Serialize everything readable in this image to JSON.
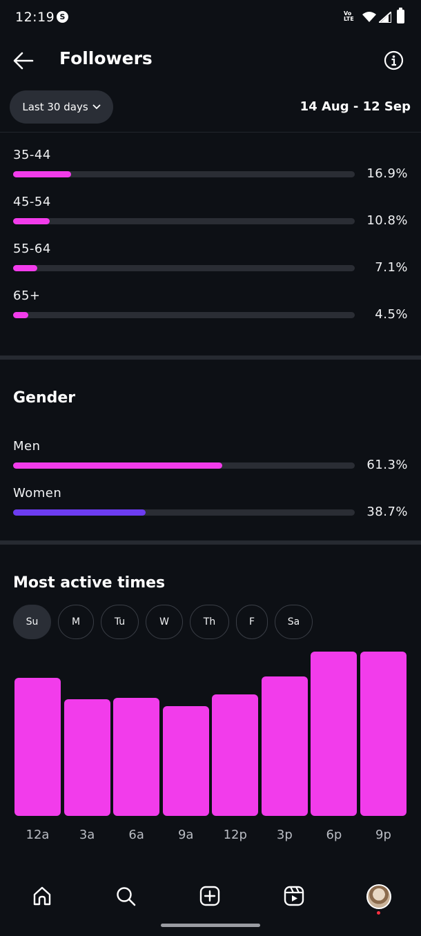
{
  "status_bar": {
    "time": "12:19",
    "badge": "S",
    "network": "Vo\nLTE"
  },
  "header": {
    "title": "Followers",
    "back_icon": "arrow-left-icon",
    "info_icon": "info-circle-icon"
  },
  "filter": {
    "range_label": "Last 30 days",
    "date_range": "14 Aug - 12 Sep"
  },
  "age_groups": [
    {
      "label": "35-44",
      "value": "16.9%",
      "fraction": 0.169
    },
    {
      "label": "45-54",
      "value": "10.8%",
      "fraction": 0.108
    },
    {
      "label": "55-64",
      "value": "7.1%",
      "fraction": 0.071
    },
    {
      "label": "65+",
      "value": "4.5%",
      "fraction": 0.045
    }
  ],
  "gender": {
    "title": "Gender",
    "items": [
      {
        "label": "Men",
        "value": "61.3%",
        "fraction": 0.613,
        "color": "#f23ceb"
      },
      {
        "label": "Women",
        "value": "38.7%",
        "fraction": 0.387,
        "color": "#6c3cf0"
      }
    ]
  },
  "active_times": {
    "title": "Most active times",
    "days": [
      "Su",
      "M",
      "Tu",
      "W",
      "Th",
      "F",
      "Sa"
    ],
    "selected_day": "Su"
  },
  "chart_data": {
    "type": "bar",
    "categories": [
      "12a",
      "3a",
      "6a",
      "9a",
      "12p",
      "3p",
      "6p",
      "9p"
    ],
    "values": [
      84,
      71,
      72,
      67,
      74,
      85,
      100,
      100
    ],
    "ylim": [
      0,
      100
    ],
    "color": "#f23ceb"
  },
  "bottom_nav": {
    "items": [
      "home-icon",
      "search-icon",
      "create-plus-icon",
      "reels-icon",
      "profile-avatar"
    ]
  }
}
